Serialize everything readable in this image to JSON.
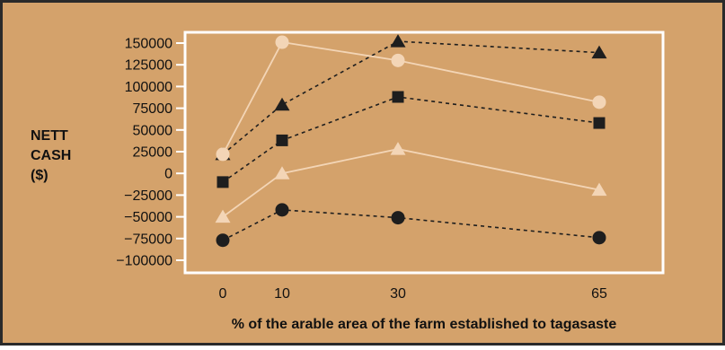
{
  "colors": {
    "background": "#d4a26b",
    "frame": "#2a2a2a",
    "plot_border": "#ffffff",
    "dark_series": "#1e1e1e",
    "light_series": "#f3d5b6"
  },
  "chart_data": {
    "type": "line",
    "title": "",
    "xlabel": "% of the arable area of the farm established to tagasaste",
    "ylabel": [
      "NETT",
      "CASH",
      "($)"
    ],
    "x": [
      0,
      10,
      30,
      65
    ],
    "x_ticks": [
      "0",
      "10",
      "30",
      "65"
    ],
    "ylim": [
      -112500,
      162500
    ],
    "y_ticks": [
      150000,
      125000,
      100000,
      75000,
      50000,
      25000,
      0,
      -25000,
      -50000,
      -75000,
      -100000
    ],
    "y_tick_labels": [
      "150000",
      "125000",
      "100000",
      "75000",
      "50000",
      "25000",
      "0",
      "−25000",
      "−50000",
      "−75000",
      "−100000"
    ],
    "grid": false,
    "legend": "none",
    "series": [
      {
        "marker": "triangle",
        "color": "dark",
        "line": "dashed",
        "values": [
          22000,
          79000,
          152000,
          139000
        ]
      },
      {
        "marker": "circle",
        "color": "light",
        "line": "solid",
        "values": [
          22000,
          151000,
          130000,
          82000
        ]
      },
      {
        "marker": "square",
        "color": "dark",
        "line": "dashed",
        "values": [
          -10000,
          38000,
          88000,
          58000
        ]
      },
      {
        "marker": "triangle",
        "color": "light",
        "line": "solid",
        "values": [
          -50000,
          0,
          28000,
          -19000
        ]
      },
      {
        "marker": "circle",
        "color": "dark",
        "line": "dashed",
        "values": [
          -77000,
          -42000,
          -51000,
          -74000
        ]
      }
    ]
  }
}
